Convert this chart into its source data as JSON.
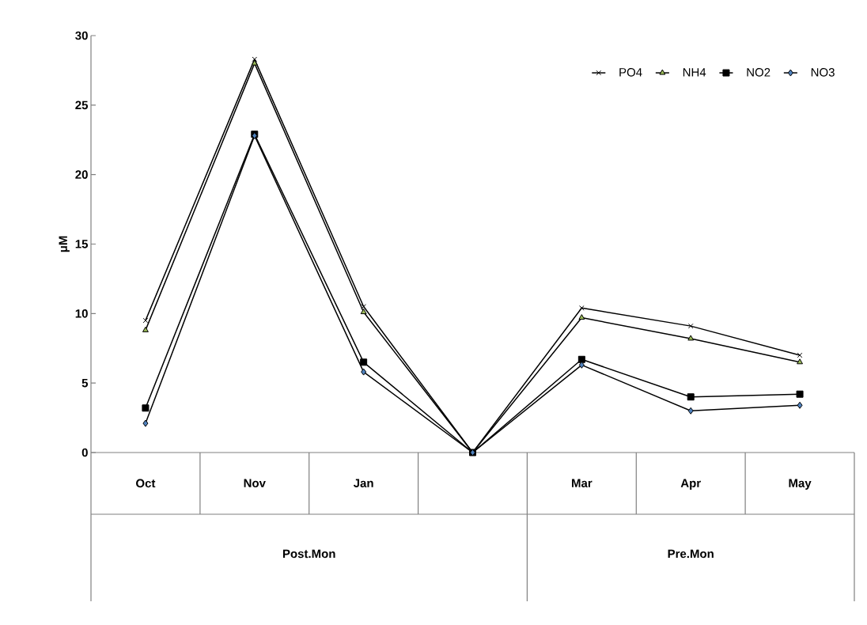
{
  "chart_data": {
    "type": "line",
    "ylabel": "μM",
    "categories": [
      "Oct",
      "Nov",
      "Jan",
      null,
      "Mar",
      "Apr",
      "May"
    ],
    "series": [
      {
        "name": "PO4",
        "color": "#000000",
        "marker": "cross",
        "values": [
          9.5,
          28.3,
          10.5,
          0,
          10.4,
          9.1,
          7.0
        ]
      },
      {
        "name": "NH4",
        "color": "#9bbb59",
        "marker": "triangle",
        "values": [
          8.8,
          28.0,
          10.1,
          0,
          9.7,
          8.2,
          6.5
        ]
      },
      {
        "name": "NO2",
        "color": "#000000",
        "marker": "square",
        "values": [
          3.2,
          22.9,
          6.5,
          0,
          6.7,
          4.0,
          4.2
        ]
      },
      {
        "name": "NO3",
        "color": "#4f81bd",
        "marker": "diamond",
        "values": [
          2.1,
          22.8,
          5.8,
          0,
          6.3,
          3.0,
          3.4
        ]
      }
    ],
    "ylim": [
      0,
      30
    ],
    "yticks": [
      0,
      5,
      10,
      15,
      20,
      25,
      30
    ],
    "annotations": [
      "Post.Mon",
      "Pre.Mon"
    ],
    "legend": "top right",
    "grid": false,
    "line_style": "solid"
  }
}
